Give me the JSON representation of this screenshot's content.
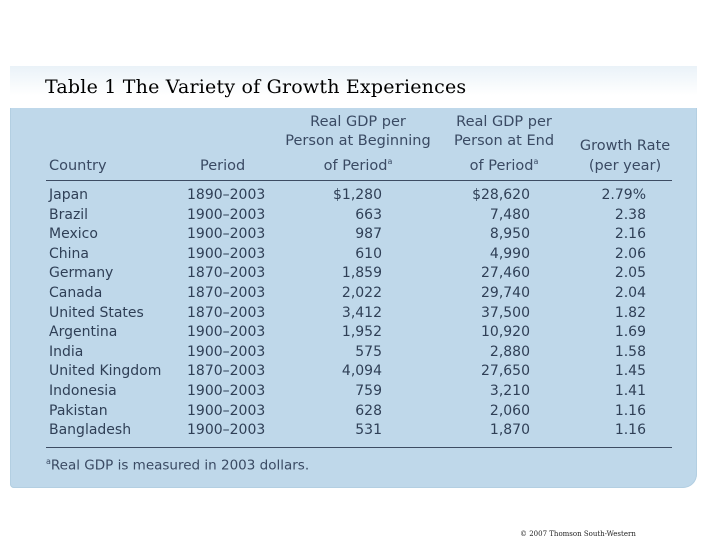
{
  "slide": {
    "title": "Table 1 The Variety of Growth Experiences"
  },
  "table": {
    "headers": {
      "country": "Country",
      "period": "Period",
      "begin": [
        "Real GDP per",
        "Person at Beginning",
        "of Period"
      ],
      "end": [
        "Real GDP per",
        "Person at End",
        "of Period"
      ],
      "growth": [
        "Growth Rate",
        "(per year)"
      ],
      "superscript": "a"
    },
    "rows": [
      {
        "country": "Japan",
        "period": "1890–2003",
        "begin": "$1,280",
        "end": "$28,620",
        "growth": "2.79%"
      },
      {
        "country": "Brazil",
        "period": "1900–2003",
        "begin": "663",
        "end": "7,480",
        "growth": "2.38"
      },
      {
        "country": "Mexico",
        "period": "1900–2003",
        "begin": "987",
        "end": "8,950",
        "growth": "2.16"
      },
      {
        "country": "China",
        "period": "1900–2003",
        "begin": "610",
        "end": "4,990",
        "growth": "2.06"
      },
      {
        "country": "Germany",
        "period": "1870–2003",
        "begin": "1,859",
        "end": "27,460",
        "growth": "2.05"
      },
      {
        "country": "Canada",
        "period": "1870–2003",
        "begin": "2,022",
        "end": "29,740",
        "growth": "2.04"
      },
      {
        "country": "United States",
        "period": "1870–2003",
        "begin": "3,412",
        "end": "37,500",
        "growth": "1.82"
      },
      {
        "country": "Argentina",
        "period": "1900–2003",
        "begin": "1,952",
        "end": "10,920",
        "growth": "1.69"
      },
      {
        "country": "India",
        "period": "1900–2003",
        "begin": "575",
        "end": "2,880",
        "growth": "1.58"
      },
      {
        "country": "United Kingdom",
        "period": "1870–2003",
        "begin": "4,094",
        "end": "27,650",
        "growth": "1.45"
      },
      {
        "country": "Indonesia",
        "period": "1900–2003",
        "begin": "759",
        "end": "3,210",
        "growth": "1.41"
      },
      {
        "country": "Pakistan",
        "period": "1900–2003",
        "begin": "628",
        "end": "2,060",
        "growth": "1.16"
      },
      {
        "country": "Bangladesh",
        "period": "1900–2003",
        "begin": "531",
        "end": "1,870",
        "growth": "1.16"
      }
    ],
    "footnote": {
      "marker": "a",
      "text": "Real GDP is measured in 2003 dollars."
    }
  },
  "copyright": "© 2007 Thomson South-Western"
}
